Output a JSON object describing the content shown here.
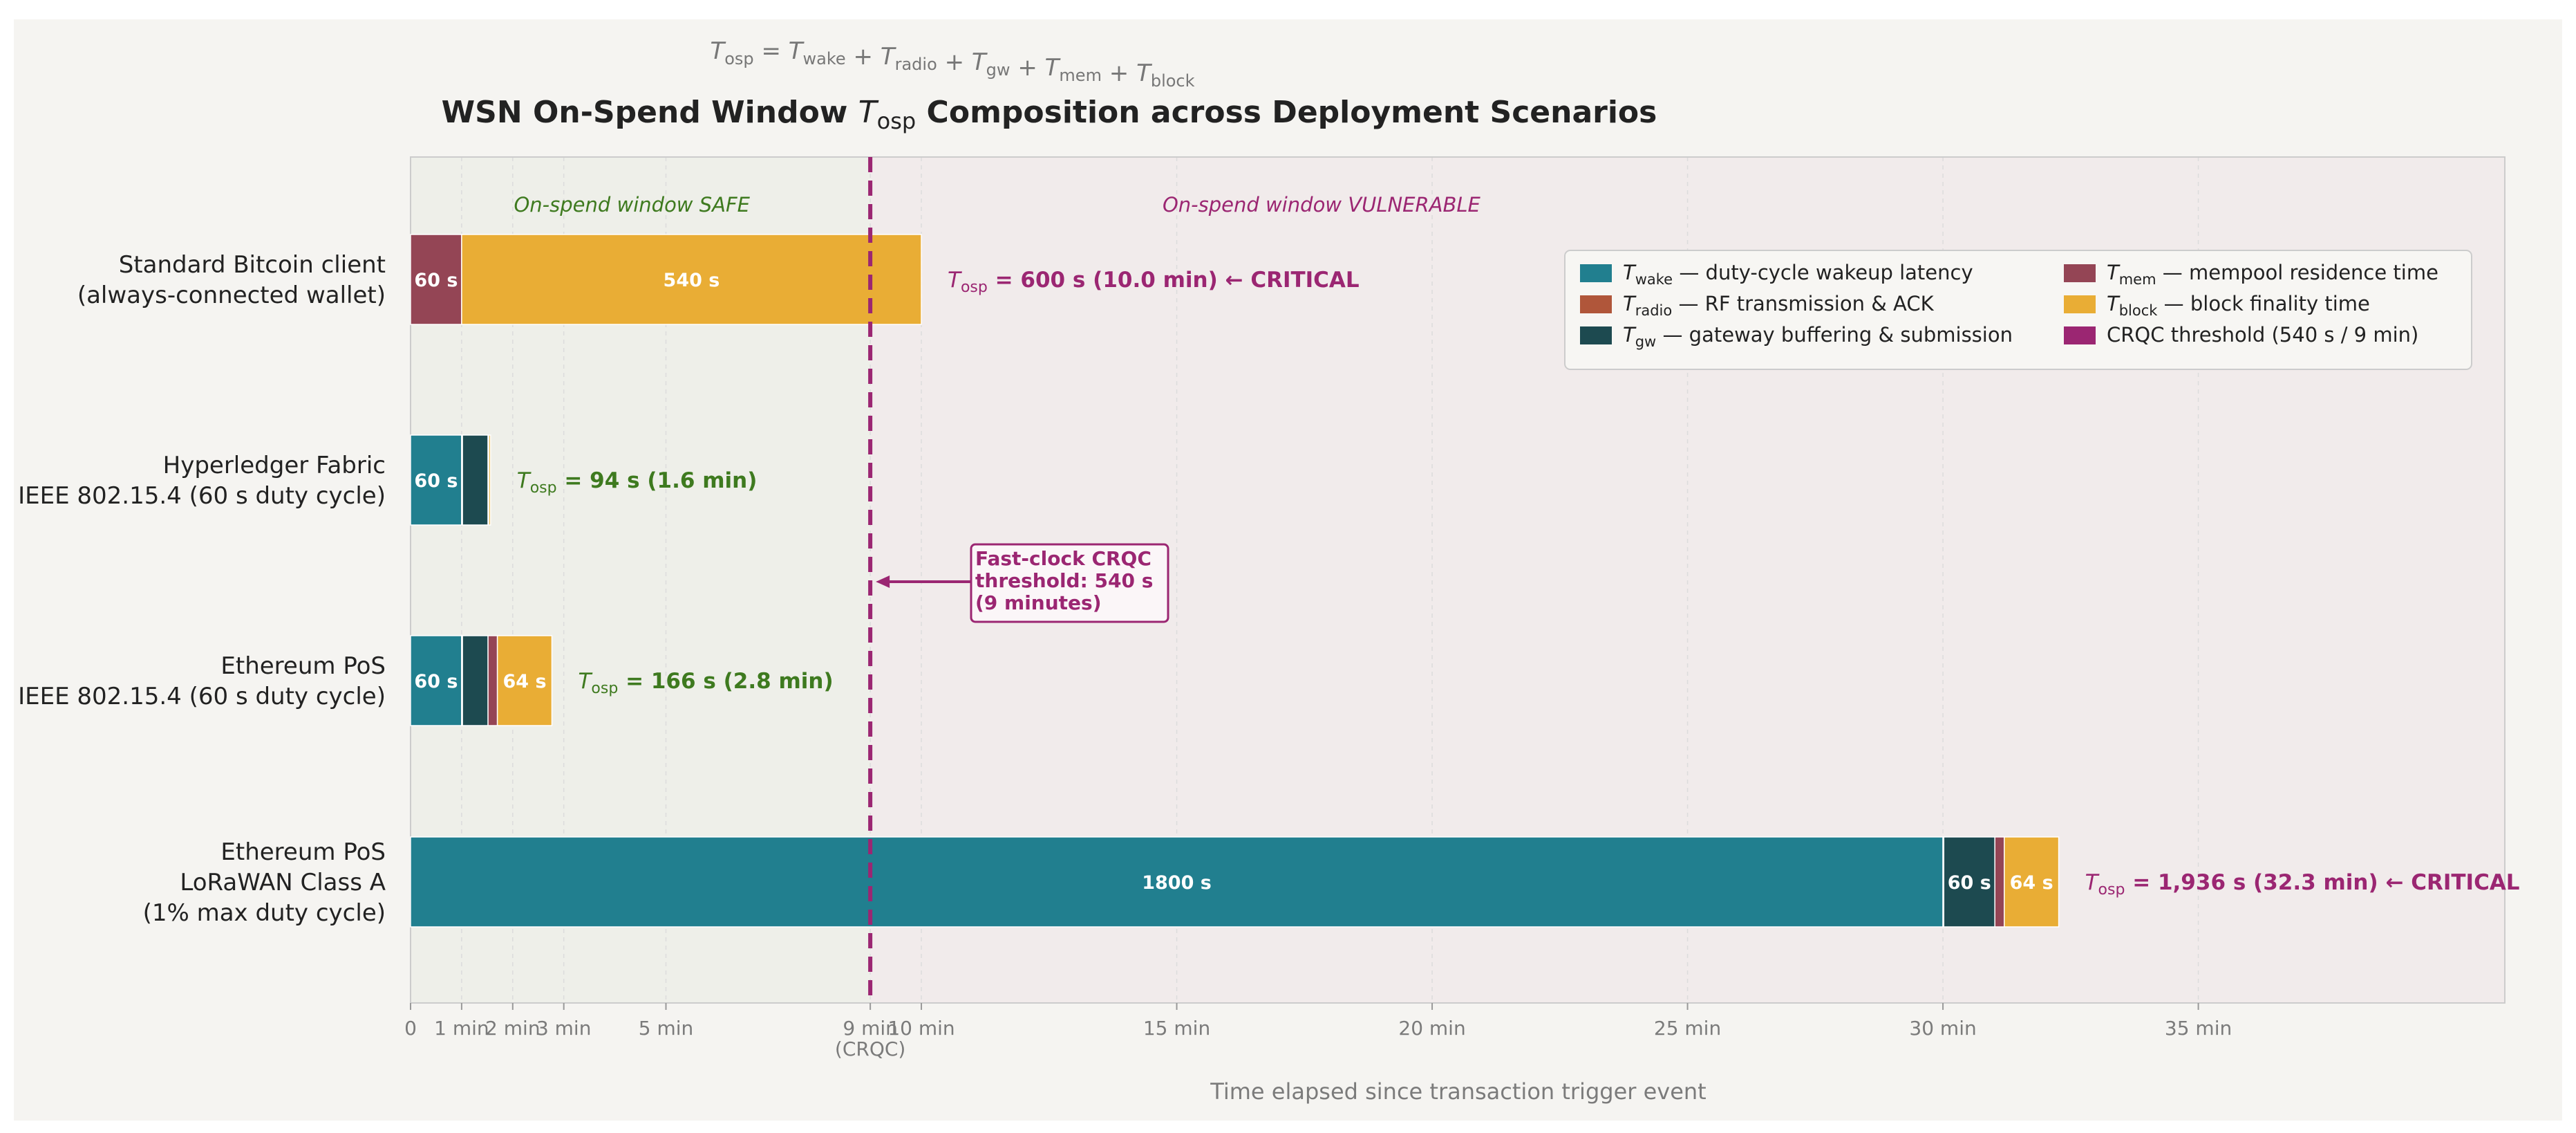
{
  "formula": {
    "lhs": "T",
    "lhs_sub": "osp",
    "terms": [
      {
        "sym": "T",
        "sub": "wake"
      },
      {
        "sym": "T",
        "sub": "radio"
      },
      {
        "sym": "T",
        "sub": "gw"
      },
      {
        "sym": "T",
        "sub": "mem"
      },
      {
        "sym": "T",
        "sub": "block"
      }
    ]
  },
  "title": {
    "before": "WSN On-Spend Window ",
    "sym": "T",
    "sub": "osp",
    "after": " Composition across Deployment Scenarios"
  },
  "colors": {
    "figure_bg": "#f5f4f1",
    "safe_zone": "#eeefe9",
    "vulnerable_zone": "#f1ebeb",
    "wake": "#217f8f",
    "radio": "#b0563a",
    "gw": "#1d4a50",
    "mem": "#944555",
    "block": "#e9ad35",
    "crqc": "#9b2672",
    "ok_text": "#3e7a1f",
    "axis_text": "#7b7b7b",
    "label_text": "#222222"
  },
  "chart_data": {
    "type": "bar",
    "orientation": "horizontal",
    "stacked": true,
    "x_unit": "seconds",
    "xlim": [
      0,
      2460
    ],
    "xlabel": "Time elapsed since transaction trigger event",
    "xticks": [
      {
        "value": 0,
        "label": "0"
      },
      {
        "value": 60,
        "label": "1 min"
      },
      {
        "value": 120,
        "label": "2 min"
      },
      {
        "value": 180,
        "label": "3 min"
      },
      {
        "value": 300,
        "label": "5 min"
      },
      {
        "value": 540,
        "label": "9 min\n(CRQC)"
      },
      {
        "value": 600,
        "label": "10 min"
      },
      {
        "value": 900,
        "label": "15 min"
      },
      {
        "value": 1200,
        "label": "20 min"
      },
      {
        "value": 1500,
        "label": "25 min"
      },
      {
        "value": 1800,
        "label": "30 min"
      },
      {
        "value": 2100,
        "label": "35 min"
      }
    ],
    "grid": true,
    "threshold": {
      "value": 540
    },
    "zones": [
      {
        "from": 0,
        "to": 540,
        "label": "On-spend window SAFE",
        "center": 260
      },
      {
        "from": 540,
        "to": 2460,
        "label": "On-spend window VULNERABLE",
        "center": 1070
      }
    ],
    "annotation": {
      "lines": [
        "Fast-clock CRQC",
        "threshold: 540 s",
        "(9 minutes)"
      ]
    },
    "components": [
      {
        "key": "wake",
        "sub": "wake",
        "desc": "— duty-cycle wakeup latency"
      },
      {
        "key": "radio",
        "sub": "radio",
        "desc": "— RF transmission & ACK"
      },
      {
        "key": "gw",
        "sub": "gw",
        "desc": "— gateway buffering & submission"
      },
      {
        "key": "mem",
        "sub": "mem",
        "desc": "— mempool residence time"
      },
      {
        "key": "block",
        "sub": "block",
        "desc": "— block finality time"
      }
    ],
    "legend": {
      "placement": "top-right",
      "threshold_entry": "CRQC threshold (540 s / 9 min)"
    },
    "scenarios": [
      {
        "label": [
          "Standard Bitcoin client",
          "(always-connected wallet)"
        ],
        "segments": {
          "wake": 0,
          "radio": 0,
          "gw": 0,
          "mem": 60,
          "block": 540
        },
        "segment_labels": {
          "mem": "60 s",
          "block": "540 s"
        },
        "total_value": "= 600 s  (10.0 min)",
        "critical": true,
        "critical_text": "← CRITICAL"
      },
      {
        "label": [
          "Hyperledger Fabric",
          "IEEE 802.15.4 (60 s duty cycle)"
        ],
        "segments": {
          "wake": 60,
          "radio": 1,
          "gw": 30,
          "mem": 1,
          "block": 2
        },
        "segment_labels": {
          "wake": "60 s"
        },
        "total_value": "= 94 s  (1.6 min)",
        "critical": false
      },
      {
        "label": [
          "Ethereum PoS",
          "IEEE 802.15.4 (60 s duty cycle)"
        ],
        "segments": {
          "wake": 60,
          "radio": 1,
          "gw": 30,
          "mem": 11,
          "block": 64
        },
        "segment_labels": {
          "wake": "60 s",
          "block": "64 s"
        },
        "total_value": "= 166 s  (2.8 min)",
        "critical": false
      },
      {
        "label": [
          "Ethereum PoS",
          "LoRaWAN Class A",
          "(1% max duty cycle)"
        ],
        "segments": {
          "wake": 1800,
          "radio": 1,
          "gw": 60,
          "mem": 11,
          "block": 64
        },
        "segment_labels": {
          "wake": "1800 s",
          "gw": "60 s",
          "block": "64 s"
        },
        "total_value": "= 1,936 s  (32.3 min)",
        "critical": true,
        "critical_text": "← CRITICAL"
      }
    ]
  }
}
